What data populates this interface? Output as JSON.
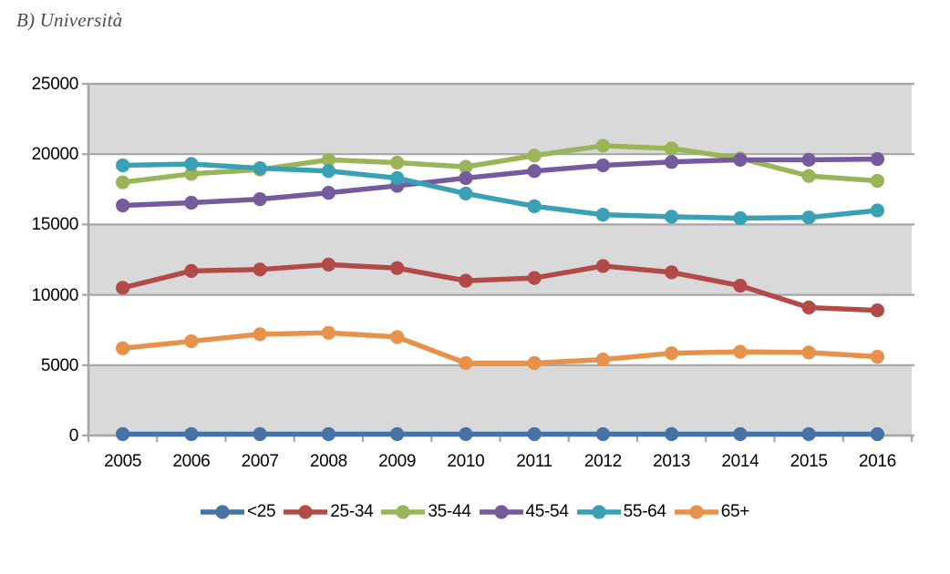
{
  "title": "B) Università",
  "chart_data": {
    "type": "line",
    "title": "B) Università",
    "xlabel": "",
    "ylabel": "",
    "x": [
      "2005",
      "2006",
      "2007",
      "2008",
      "2009",
      "2010",
      "2011",
      "2012",
      "2013",
      "2014",
      "2015",
      "2016"
    ],
    "ylim": [
      0,
      25000
    ],
    "ytick_step": 5000,
    "yticks": [
      "0",
      "5000",
      "10000",
      "15000",
      "20000",
      "25000"
    ],
    "grid": true,
    "plot_band_colors": [
      "#d9d9d9",
      "#ffffff"
    ],
    "gridline_color": "#a6a6a6",
    "axis_color": "#a6a6a6",
    "legend_position": "bottom",
    "series": [
      {
        "name": "<25",
        "color": "#4573a7",
        "values": [
          100,
          100,
          100,
          100,
          100,
          100,
          100,
          100,
          100,
          100,
          100,
          100
        ]
      },
      {
        "name": "25-34",
        "color": "#b24b47",
        "values": [
          10500,
          11700,
          11800,
          12150,
          11900,
          11000,
          11200,
          12050,
          11600,
          10650,
          9100,
          8900
        ]
      },
      {
        "name": "35-44",
        "color": "#9ab558",
        "values": [
          18000,
          18600,
          18900,
          19600,
          19400,
          19100,
          19900,
          20600,
          20400,
          19700,
          18450,
          18100
        ]
      },
      {
        "name": "45-54",
        "color": "#755b9e",
        "values": [
          16350,
          16550,
          16800,
          17250,
          17750,
          18300,
          18800,
          19200,
          19450,
          19600,
          19600,
          19650
        ]
      },
      {
        "name": "55-64",
        "color": "#3aa0b5",
        "values": [
          19200,
          19300,
          19000,
          18800,
          18300,
          17200,
          16300,
          15700,
          15550,
          15450,
          15500,
          16000
        ]
      },
      {
        "name": "65+",
        "color": "#e8914a",
        "values": [
          6200,
          6700,
          7200,
          7300,
          7000,
          5150,
          5150,
          5400,
          5850,
          5950,
          5900,
          5600
        ]
      }
    ]
  }
}
